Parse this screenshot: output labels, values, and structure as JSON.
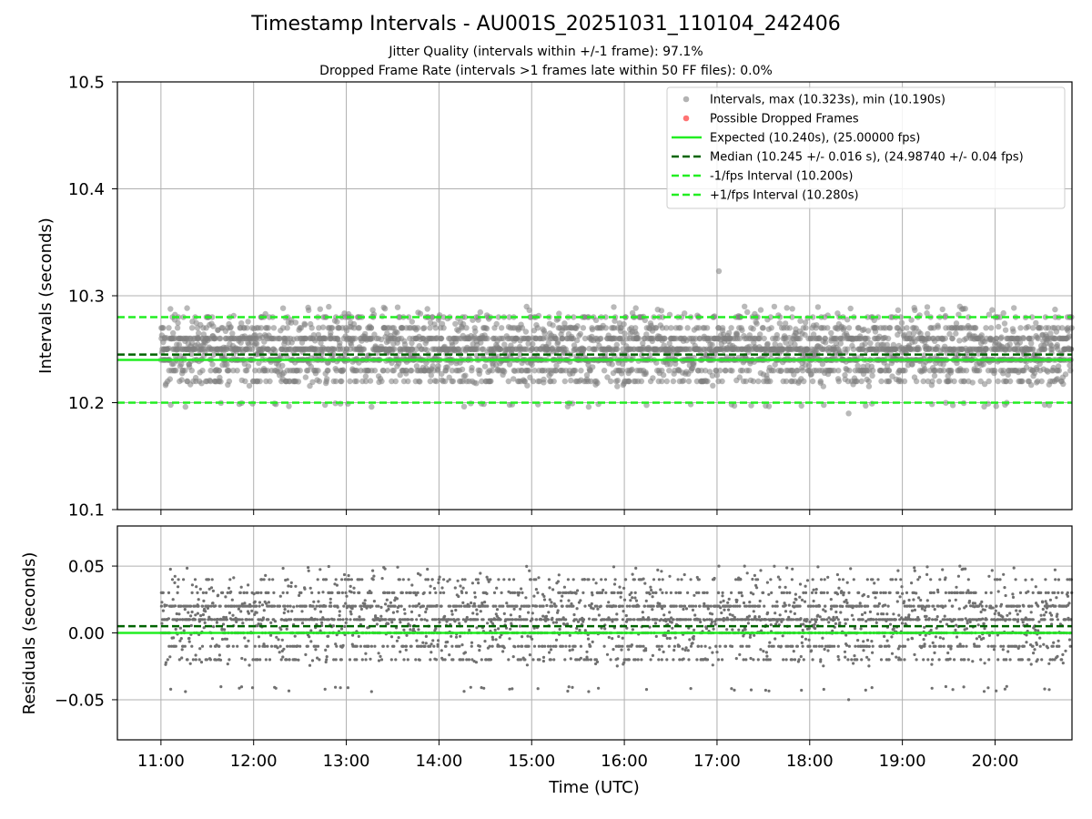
{
  "figure": {
    "title": "Timestamp Intervals - AU001S_20251031_110104_242406",
    "subtitle_1": "Jitter Quality (intervals within +/-1 frame): 97.1%",
    "subtitle_2": "Dropped Frame Rate (intervals >1 frames late within 50 FF files): 0.0%"
  },
  "colors": {
    "interval_points": "#808080",
    "dropped_points": "#ff0000",
    "expected": "#22ee22",
    "median": "#006400",
    "fps_bounds": "#22ee22",
    "grid": "#b0b0b0"
  },
  "chart_data": [
    {
      "id": "intervals",
      "type": "scatter",
      "xlabel": "",
      "ylabel": "Intervals (seconds)",
      "xlim_hours": [
        10.53,
        20.83
      ],
      "ylim": [
        10.1,
        10.5
      ],
      "yticks": [
        "10.1",
        "10.2",
        "10.3",
        "10.4",
        "10.5"
      ],
      "ytick_values": [
        10.1,
        10.2,
        10.3,
        10.4,
        10.5
      ],
      "grid": true,
      "legend_position": "top-right",
      "series": [
        {
          "name": "Intervals, max (10.323s), min (10.190s)",
          "kind": "points",
          "count": 3500,
          "x_range_hours": [
            11.0,
            20.83
          ],
          "typical_levels": [
            10.22,
            10.23,
            10.24,
            10.25,
            10.26,
            10.27,
            10.28
          ],
          "max": 10.323,
          "min": 10.19,
          "max_at_hour": 17.02,
          "min_at_hour": 18.42
        },
        {
          "name": "Possible Dropped Frames",
          "kind": "points",
          "count": 0
        },
        {
          "name": "Expected (10.240s), (25.00000 fps)",
          "kind": "hline",
          "y": 10.24,
          "style": "solid"
        },
        {
          "name": "Median (10.245 +/- 0.016 s), (24.98740 +/- 0.04 fps)",
          "kind": "hline",
          "y": 10.245,
          "style": "dashed"
        },
        {
          "name": "-1/fps Interval (10.200s)",
          "kind": "hline",
          "y": 10.2,
          "style": "dashed"
        },
        {
          "name": "+1/fps Interval (10.280s)",
          "kind": "hline",
          "y": 10.28,
          "style": "dashed"
        }
      ]
    },
    {
      "id": "residuals",
      "type": "scatter",
      "xlabel": "Time (UTC)",
      "ylabel": "Residuals (seconds)",
      "xlim_hours": [
        10.53,
        20.83
      ],
      "ylim": [
        -0.08,
        0.08
      ],
      "yticks": [
        "−0.05",
        "0.00",
        "0.05"
      ],
      "ytick_values": [
        -0.05,
        0.0,
        0.05
      ],
      "xticks": [
        "11:00",
        "12:00",
        "13:00",
        "14:00",
        "15:00",
        "16:00",
        "17:00",
        "18:00",
        "19:00",
        "20:00"
      ],
      "xtick_values": [
        11,
        12,
        13,
        14,
        15,
        16,
        17,
        18,
        19,
        20
      ],
      "grid": true,
      "series": [
        {
          "name": "Residuals",
          "kind": "points",
          "count": 3500,
          "typical_levels": [
            -0.02,
            -0.01,
            0.0,
            0.01,
            0.02,
            0.03,
            0.04
          ],
          "max": 0.05,
          "min": -0.05
        },
        {
          "name": "Zero",
          "kind": "hline",
          "y": 0.0,
          "style": "solid"
        },
        {
          "name": "Median offset",
          "kind": "hline",
          "y": 0.005,
          "style": "dashed"
        }
      ]
    }
  ]
}
